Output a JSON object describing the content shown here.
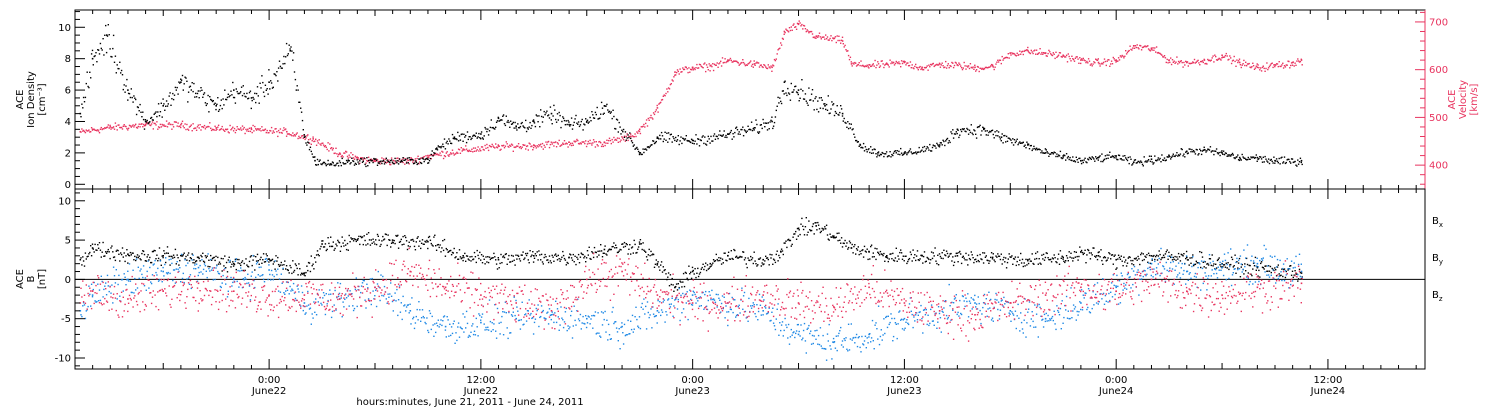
{
  "figure": {
    "time_axis": {
      "tick_times": [
        "0:00",
        "12:00",
        "0:00",
        "12:00",
        "0:00",
        "12:00"
      ],
      "tick_dates": [
        "June22",
        "June22",
        "June23",
        "June23",
        "June24",
        "June24"
      ],
      "xlabel": "hours:minutes, June 21, 2011 - June 24, 2011"
    }
  },
  "chart_data": [
    {
      "type": "scatter",
      "panel": "top",
      "x_units": "hours since 2011-06-21 00:00",
      "xlim": [
        13,
        89.5
      ],
      "data_end_hour": 82.5,
      "ylabel_left": [
        "ACE",
        "Ion Density",
        "[cm⁻³]"
      ],
      "ylabel_right": [
        "ACE",
        "Velocity",
        "[km/s]"
      ],
      "left_ylim": [
        -0.3,
        11.1
      ],
      "left_ticks": [
        0,
        2,
        4,
        6,
        8,
        10
      ],
      "right_ylim": [
        350,
        725
      ],
      "right_ticks": [
        400,
        500,
        600,
        700
      ],
      "series": [
        {
          "axis": "left",
          "color": "#000000",
          "values": [
            [
              13.3,
              4.5
            ],
            [
              14,
              8
            ],
            [
              14.8,
              9.5
            ],
            [
              16,
              6
            ],
            [
              17,
              4
            ],
            [
              18,
              5
            ],
            [
              19,
              6.5
            ],
            [
              21,
              5
            ],
            [
              22,
              6
            ],
            [
              23,
              5.5
            ],
            [
              24,
              6.5
            ],
            [
              25.2,
              8.5
            ],
            [
              26,
              3
            ],
            [
              26.6,
              1.5
            ],
            [
              27.5,
              1.3
            ],
            [
              28.5,
              1.5
            ],
            [
              31.5,
              1.5
            ],
            [
              33,
              1.6
            ],
            [
              33.5,
              2.3
            ],
            [
              34.5,
              3
            ],
            [
              36,
              3.2
            ],
            [
              37,
              4.2
            ],
            [
              38,
              3.7
            ],
            [
              39,
              4
            ],
            [
              40,
              4.5
            ],
            [
              41,
              3.8
            ],
            [
              42,
              4
            ],
            [
              43,
              5
            ],
            [
              45,
              2
            ],
            [
              46,
              3
            ],
            [
              48,
              2.8
            ],
            [
              50,
              3.2
            ],
            [
              51.5,
              3.6
            ],
            [
              52.5,
              4
            ],
            [
              53.2,
              6.5
            ],
            [
              54,
              6
            ],
            [
              55.5,
              5
            ],
            [
              56.5,
              4.5
            ],
            [
              57.5,
              2.5
            ],
            [
              58.5,
              2
            ],
            [
              60,
              2
            ],
            [
              62,
              2.5
            ],
            [
              63,
              3.5
            ],
            [
              64.5,
              3.5
            ],
            [
              65.5,
              3
            ],
            [
              67,
              2.5
            ],
            [
              68,
              2
            ],
            [
              69,
              1.8
            ],
            [
              70,
              1.5
            ],
            [
              71,
              1.7
            ],
            [
              72,
              1.8
            ],
            [
              73,
              1.4
            ],
            [
              74,
              1.6
            ],
            [
              75,
              1.8
            ],
            [
              76,
              2.1
            ],
            [
              77,
              2.2
            ],
            [
              78,
              2
            ],
            [
              79,
              1.7
            ],
            [
              80,
              1.7
            ],
            [
              81,
              1.5
            ],
            [
              82.5,
              1.5
            ]
          ]
        },
        {
          "axis": "right",
          "color": "#e8345f",
          "values": [
            [
              13.3,
              470
            ],
            [
              14,
              475
            ],
            [
              15,
              480
            ],
            [
              17,
              485
            ],
            [
              19,
              485
            ],
            [
              21,
              478
            ],
            [
              23,
              475
            ],
            [
              25,
              470
            ],
            [
              26.5,
              455
            ],
            [
              28,
              425
            ],
            [
              29,
              415
            ],
            [
              30,
              410
            ],
            [
              32,
              410
            ],
            [
              33,
              420
            ],
            [
              35,
              432
            ],
            [
              37,
              440
            ],
            [
              39,
              442
            ],
            [
              41,
              448
            ],
            [
              43,
              448
            ],
            [
              44.5,
              460
            ],
            [
              45,
              475
            ],
            [
              46,
              520
            ],
            [
              47,
              595
            ],
            [
              48,
              605
            ],
            [
              49,
              608
            ],
            [
              50,
              620
            ],
            [
              51.5,
              612
            ],
            [
              52.5,
              605
            ],
            [
              53.2,
              680
            ],
            [
              54,
              695
            ],
            [
              55,
              670
            ],
            [
              56,
              665
            ],
            [
              56.5,
              660
            ],
            [
              57,
              612
            ],
            [
              58,
              610
            ],
            [
              59,
              612
            ],
            [
              60,
              615
            ],
            [
              61,
              605
            ],
            [
              62,
              612
            ],
            [
              63,
              610
            ],
            [
              64,
              605
            ],
            [
              65,
              608
            ],
            [
              66,
              635
            ],
            [
              67,
              640
            ],
            [
              68,
              635
            ],
            [
              69,
              630
            ],
            [
              70,
              620
            ],
            [
              71,
              615
            ],
            [
              72,
              620
            ],
            [
              73,
              650
            ],
            [
              74,
              645
            ],
            [
              75,
              620
            ],
            [
              76,
              615
            ],
            [
              77,
              620
            ],
            [
              78,
              630
            ],
            [
              79,
              615
            ],
            [
              80,
              605
            ],
            [
              81,
              610
            ],
            [
              82,
              615
            ],
            [
              82.5,
              620
            ]
          ]
        }
      ]
    },
    {
      "type": "scatter",
      "panel": "bottom",
      "x_units": "hours since 2011-06-21 00:00",
      "xlim": [
        13,
        89.5
      ],
      "ylabel": [
        "ACE",
        "B",
        "[nT]"
      ],
      "ylim": [
        -11.4,
        11.5
      ],
      "ticks": [
        -10,
        -5,
        0,
        5,
        10
      ],
      "zero_line": true,
      "series": [
        {
          "name": "Bx",
          "legend_main": "B",
          "legend_sub": "x",
          "color": "#000000",
          "values": [
            [
              13.3,
              2.5
            ],
            [
              14,
              4
            ],
            [
              16,
              3.2
            ],
            [
              18,
              3
            ],
            [
              20,
              2.8
            ],
            [
              22,
              2
            ],
            [
              24,
              2.6
            ],
            [
              26,
              0.8
            ],
            [
              27,
              4.5
            ],
            [
              29,
              5
            ],
            [
              31,
              5
            ],
            [
              33,
              4.8
            ],
            [
              35,
              3
            ],
            [
              37,
              2.5
            ],
            [
              39,
              3
            ],
            [
              41,
              2.8
            ],
            [
              43,
              3.8
            ],
            [
              45,
              4.5
            ],
            [
              46,
              2
            ],
            [
              47,
              -1
            ],
            [
              48,
              1
            ],
            [
              49,
              2
            ],
            [
              50,
              3
            ],
            [
              52,
              2.5
            ],
            [
              53,
              3.5
            ],
            [
              54,
              6.5
            ],
            [
              55,
              6.8
            ],
            [
              56,
              5.5
            ],
            [
              57,
              4
            ],
            [
              58,
              3.5
            ],
            [
              59,
              3
            ],
            [
              61,
              3
            ],
            [
              63,
              3
            ],
            [
              65,
              2.8
            ],
            [
              67,
              2.5
            ],
            [
              69,
              2.8
            ],
            [
              70,
              3.5
            ],
            [
              71,
              3
            ],
            [
              72,
              2.5
            ],
            [
              74,
              3
            ],
            [
              76,
              2.8
            ],
            [
              78,
              2
            ],
            [
              80,
              1.5
            ],
            [
              82.5,
              0.8
            ]
          ]
        },
        {
          "name": "By",
          "legend_main": "B",
          "legend_sub": "y",
          "color": "#1e88e5",
          "values": [
            [
              13.3,
              -4
            ],
            [
              14,
              -2
            ],
            [
              16,
              0
            ],
            [
              18,
              1
            ],
            [
              20,
              1.5
            ],
            [
              22,
              0
            ],
            [
              24,
              1.2
            ],
            [
              26,
              -3
            ],
            [
              28,
              -2.5
            ],
            [
              30,
              -1
            ],
            [
              32,
              -4
            ],
            [
              34,
              -6
            ],
            [
              36,
              -5.5
            ],
            [
              38,
              -5
            ],
            [
              40,
              -4.5
            ],
            [
              42,
              -5
            ],
            [
              44,
              -6
            ],
            [
              46,
              -4
            ],
            [
              48,
              -2
            ],
            [
              50,
              -3
            ],
            [
              52,
              -4
            ],
            [
              54,
              -7
            ],
            [
              56,
              -8
            ],
            [
              58,
              -7
            ],
            [
              60,
              -5
            ],
            [
              62,
              -4
            ],
            [
              64,
              -3
            ],
            [
              66,
              -4
            ],
            [
              68,
              -5
            ],
            [
              70,
              -3
            ],
            [
              72,
              -1
            ],
            [
              74,
              2
            ],
            [
              76,
              1
            ],
            [
              78,
              1.5
            ],
            [
              80,
              2
            ],
            [
              82.5,
              1
            ]
          ]
        },
        {
          "name": "Bz",
          "legend_main": "B",
          "legend_sub": "z",
          "color": "#e8345f",
          "values": [
            [
              13.3,
              -3
            ],
            [
              14,
              -1.5
            ],
            [
              16,
              -2.5
            ],
            [
              18,
              -1.5
            ],
            [
              20,
              -0.5
            ],
            [
              22,
              -1.5
            ],
            [
              24,
              -2
            ],
            [
              26,
              -2
            ],
            [
              28,
              -2.5
            ],
            [
              30,
              -1
            ],
            [
              32,
              1
            ],
            [
              34,
              -1
            ],
            [
              36,
              -2
            ],
            [
              38,
              -3
            ],
            [
              40,
              -4
            ],
            [
              42,
              0
            ],
            [
              44,
              1
            ],
            [
              46,
              -2
            ],
            [
              48,
              -3
            ],
            [
              50,
              -3
            ],
            [
              52,
              -2
            ],
            [
              54,
              -3
            ],
            [
              56,
              -3.5
            ],
            [
              58,
              -1
            ],
            [
              60,
              -3
            ],
            [
              62,
              -4
            ],
            [
              64,
              -4.5
            ],
            [
              66,
              -3
            ],
            [
              68,
              -2
            ],
            [
              70,
              -1
            ],
            [
              72,
              -1.5
            ],
            [
              74,
              0
            ],
            [
              76,
              -1.5
            ],
            [
              78,
              -2
            ],
            [
              80,
              -1
            ],
            [
              82.5,
              -0.5
            ]
          ]
        }
      ]
    }
  ]
}
